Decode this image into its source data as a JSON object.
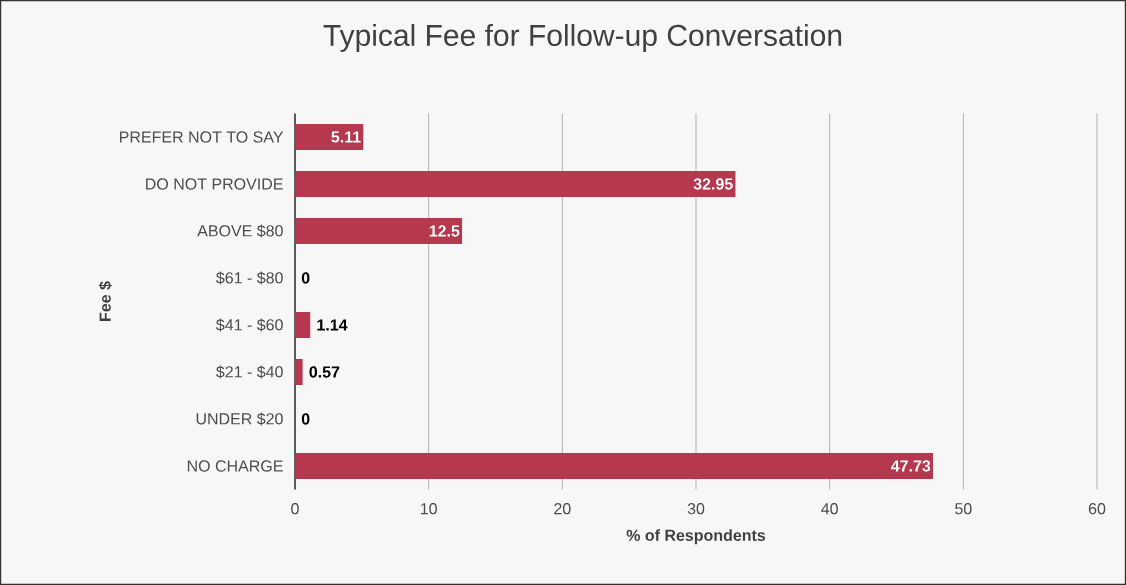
{
  "chart_data": {
    "type": "bar",
    "orientation": "horizontal",
    "title": "Typical Fee for Follow-up Conversation",
    "xlabel": "% of Respondents",
    "ylabel": "Fee $",
    "categories": [
      "PREFER NOT TO SAY",
      "DO NOT PROVIDE",
      "ABOVE $80",
      "$61 - $80",
      "$41 - $60",
      "$21 - $40",
      "UNDER $20",
      "NO CHARGE"
    ],
    "values": [
      5.11,
      32.95,
      12.5,
      0,
      1.14,
      0.57,
      0,
      47.73
    ],
    "color": "#b5384f",
    "xlim": [
      0,
      60
    ],
    "xticks": [
      0,
      10,
      20,
      30,
      40,
      50,
      60
    ],
    "grid": "x",
    "data_labels": true
  }
}
